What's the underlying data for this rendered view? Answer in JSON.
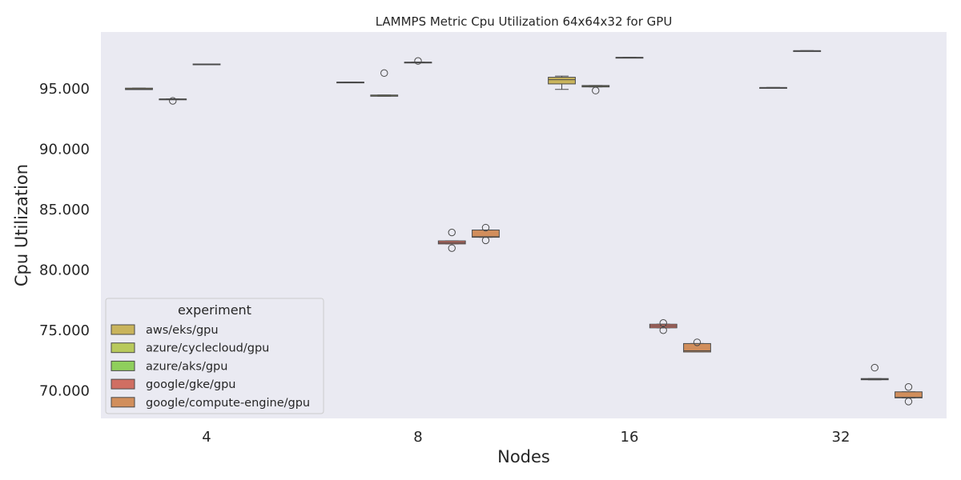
{
  "chart_data": {
    "type": "box",
    "title": "LAMMPS Metric Cpu Utilization 64x64x32 for GPU",
    "xlabel": "Nodes",
    "ylabel": "Cpu Utilization",
    "categories": [
      "4",
      "8",
      "16",
      "32"
    ],
    "y_ticks": [
      70,
      75,
      80,
      85,
      90,
      95
    ],
    "y_tick_labels": [
      "70.000",
      "75.000",
      "80.000",
      "85.000",
      "90.000",
      "95.000"
    ],
    "ylim": [
      67.7,
      99.7
    ],
    "grid": false,
    "legend": {
      "title": "experiment",
      "position": "lower-left",
      "entries": [
        "aws/eks/gpu",
        "azure/cyclecloud/gpu",
        "azure/aks/gpu",
        "google/gke/gpu",
        "google/compute-engine/gpu"
      ]
    },
    "series": [
      {
        "name": "aws/eks/gpu",
        "color": "#c9b45c",
        "boxes": [
          {
            "category": "4",
            "q1": 94.93,
            "median": 94.98,
            "q3": 95.05,
            "whisker_low": 94.93,
            "whisker_high": 95.05,
            "outliers": []
          },
          {
            "category": "8",
            "q1": 95.55,
            "median": 95.55,
            "q3": 95.55,
            "whisker_low": 95.55,
            "whisker_high": 95.55,
            "outliers": []
          },
          {
            "category": "16",
            "q1": 95.4,
            "median": 95.75,
            "q3": 95.95,
            "whisker_low": 94.95,
            "whisker_high": 96.05,
            "outliers": []
          },
          {
            "category": "32",
            "q1": 95.1,
            "median": 95.1,
            "q3": 95.1,
            "whisker_low": 95.1,
            "whisker_high": 95.1,
            "outliers": []
          }
        ]
      },
      {
        "name": "azure/cyclecloud/gpu",
        "color": "#b8c95c",
        "boxes": [
          {
            "category": "4",
            "q1": 94.15,
            "median": 94.15,
            "q3": 94.15,
            "whisker_low": 94.15,
            "whisker_high": 94.15,
            "outliers": [
              94.0
            ]
          },
          {
            "category": "8",
            "q1": 94.38,
            "median": 94.45,
            "q3": 94.48,
            "whisker_low": 94.38,
            "whisker_high": 94.48,
            "outliers": [
              96.3
            ]
          },
          {
            "category": "16",
            "q1": 95.15,
            "median": 95.2,
            "q3": 95.27,
            "whisker_low": 95.15,
            "whisker_high": 95.27,
            "outliers": [
              94.85
            ]
          },
          {
            "category": "32",
            "q1": 98.15,
            "median": 98.15,
            "q3": 98.15,
            "whisker_low": 98.15,
            "whisker_high": 98.15,
            "outliers": []
          }
        ]
      },
      {
        "name": "azure/aks/gpu",
        "color": "#8fcf5c",
        "boxes": [
          {
            "category": "4",
            "q1": 97.05,
            "median": 97.05,
            "q3": 97.05,
            "whisker_low": 97.05,
            "whisker_high": 97.05,
            "outliers": []
          },
          {
            "category": "8",
            "q1": 97.2,
            "median": 97.2,
            "q3": 97.2,
            "whisker_low": 97.2,
            "whisker_high": 97.2,
            "outliers": [
              97.3
            ]
          },
          {
            "category": "16",
            "q1": 97.6,
            "median": 97.6,
            "q3": 97.6,
            "whisker_low": 97.6,
            "whisker_high": 97.6,
            "outliers": []
          }
        ]
      },
      {
        "name": "google/gke/gpu",
        "color": "#d06e62",
        "boxes": [
          {
            "category": "8",
            "q1": 82.15,
            "median": 82.25,
            "q3": 82.4,
            "whisker_low": 82.15,
            "whisker_high": 82.4,
            "outliers": [
              83.1,
              81.8
            ]
          },
          {
            "category": "16",
            "q1": 75.2,
            "median": 75.35,
            "q3": 75.5,
            "whisker_low": 75.2,
            "whisker_high": 75.5,
            "outliers": [
              75.6,
              75.0
            ]
          },
          {
            "category": "32",
            "q1": 70.9,
            "median": 70.95,
            "q3": 71.0,
            "whisker_low": 70.9,
            "whisker_high": 71.0,
            "outliers": [
              71.9
            ]
          }
        ]
      },
      {
        "name": "google/compute-engine/gpu",
        "color": "#d18e5c",
        "boxes": [
          {
            "category": "8",
            "q1": 82.7,
            "median": 82.75,
            "q3": 83.3,
            "whisker_low": 82.7,
            "whisker_high": 83.3,
            "outliers": [
              83.5,
              82.45
            ]
          },
          {
            "category": "16",
            "q1": 73.2,
            "median": 73.3,
            "q3": 73.9,
            "whisker_low": 73.2,
            "whisker_high": 73.9,
            "outliers": [
              74.0
            ]
          },
          {
            "category": "32",
            "q1": 69.4,
            "median": 69.45,
            "q3": 69.9,
            "whisker_low": 69.4,
            "whisker_high": 69.9,
            "outliers": [
              70.3,
              69.1
            ]
          }
        ]
      }
    ]
  }
}
